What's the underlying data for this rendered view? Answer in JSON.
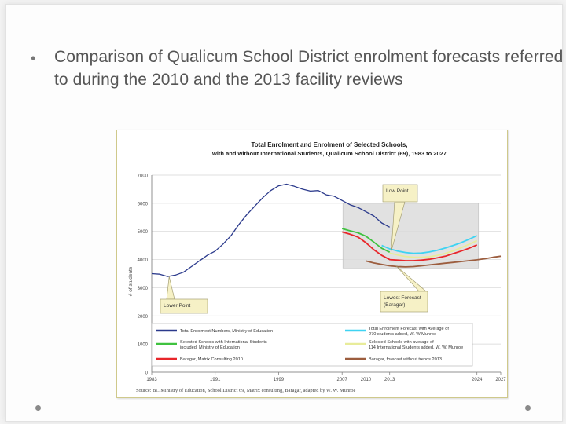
{
  "slide": {
    "bullet_symbol": "•",
    "bullet_text": "Comparison of Qualicum School District enrolment forecasts referred to during the 2010 and the 2013 facility reviews"
  },
  "chart_data": {
    "type": "line",
    "title": "Total Enrolment and Enrolment of Selected Schools,",
    "subtitle": "with and without International Students, Qualicum School District (69), 1983 to 2027",
    "ylabel": "# of students",
    "xlabel": "",
    "xlim": [
      1983,
      2027
    ],
    "ylim": [
      0,
      7000
    ],
    "y_ticks": [
      0,
      1000,
      2000,
      3000,
      4000,
      5000,
      6000,
      7000
    ],
    "x_ticks": [
      {
        "value": 1983,
        "label": "1983"
      },
      {
        "value": 1991,
        "label": "1991"
      },
      {
        "value": 1999,
        "label": "1999"
      },
      {
        "value": 2007,
        "label": "2007"
      },
      {
        "value": 2010,
        "label": "2010"
      },
      {
        "value": 2013,
        "label": "2013"
      },
      {
        "value": 2024,
        "label": "2024"
      },
      {
        "value": 2027,
        "label": "2027"
      }
    ],
    "series": [
      {
        "name": "Total Enrolment Numbers, Ministry of Education",
        "color": "#2b3a8c",
        "x": [
          1983,
          1984,
          1985,
          1986,
          1987,
          1988,
          1989,
          1990,
          1991,
          1992,
          1993,
          1994,
          1995,
          1996,
          1997,
          1998,
          1999,
          2000,
          2001,
          2002,
          2003,
          2004,
          2005,
          2006,
          2007,
          2008,
          2009,
          2010,
          2011,
          2012,
          2013
        ],
        "y": [
          3500,
          3480,
          3400,
          3450,
          3550,
          3750,
          3950,
          4150,
          4300,
          4550,
          4850,
          5250,
          5600,
          5900,
          6200,
          6450,
          6620,
          6680,
          6600,
          6500,
          6430,
          6450,
          6300,
          6250,
          6100,
          5950,
          5850,
          5700,
          5550,
          5300,
          5150
        ]
      },
      {
        "name": "Total Enrolment Forecast with Average of 270 students added, W. W Munroe",
        "color": "#3fd3f2",
        "x": [
          2012,
          2013,
          2014,
          2015,
          2016,
          2017,
          2018,
          2019,
          2020,
          2021,
          2022,
          2023,
          2024
        ],
        "y": [
          4500,
          4380,
          4300,
          4250,
          4220,
          4230,
          4270,
          4330,
          4410,
          4500,
          4600,
          4720,
          4850
        ]
      },
      {
        "name": "Selected Schools with International Students included, Ministry of Education",
        "color": "#3fc23f",
        "x": [
          2007,
          2008,
          2009,
          2010,
          2011,
          2012,
          2013
        ],
        "y": [
          5100,
          5020,
          4950,
          4830,
          4620,
          4400,
          4260
        ]
      },
      {
        "name": "Selected Schools with average of 114 International Students added, W. W. Munroe",
        "color": "#e8ec9a",
        "x": [
          2013,
          2014,
          2015,
          2016,
          2017,
          2018,
          2019,
          2020,
          2021,
          2022,
          2023,
          2024
        ],
        "y": [
          4230,
          4160,
          4110,
          4080,
          4080,
          4100,
          4150,
          4220,
          4310,
          4420,
          4540,
          4670
        ]
      },
      {
        "name": "Baragar, Matrix Consulting 2010",
        "color": "#e8262a",
        "x": [
          2007,
          2008,
          2009,
          2010,
          2011,
          2012,
          2013,
          2014,
          2015,
          2016,
          2017,
          2018,
          2019,
          2020,
          2021,
          2022,
          2023,
          2024
        ],
        "y": [
          4980,
          4900,
          4800,
          4600,
          4350,
          4150,
          4000,
          3980,
          3960,
          3960,
          3980,
          4010,
          4060,
          4120,
          4210,
          4300,
          4400,
          4520
        ]
      },
      {
        "name": "Baragar, forecast without trends 2013",
        "color": "#9c5d3e",
        "x": [
          2010,
          2011,
          2012,
          2013,
          2014,
          2015,
          2016,
          2017,
          2018,
          2019,
          2020,
          2021,
          2022,
          2023,
          2024,
          2025,
          2026,
          2027
        ],
        "y": [
          3950,
          3880,
          3830,
          3780,
          3750,
          3740,
          3750,
          3780,
          3810,
          3840,
          3870,
          3900,
          3930,
          3960,
          3990,
          4030,
          4080,
          4120
        ]
      }
    ],
    "annotations": [
      {
        "label": "Low Point",
        "target": "green/cyan minimum, around 2013"
      },
      {
        "label": "Lower Point",
        "target": "blue line dip, 1985"
      },
      {
        "label": "Lowest Forecast (Baragar)",
        "target": "red/brown forecast, around 2013"
      }
    ],
    "source": "Source: BC Ministry of Education, School District 69, Matrix consulting, Baragar, adapted by W. W. Munroe",
    "legend_position": "bottom"
  }
}
